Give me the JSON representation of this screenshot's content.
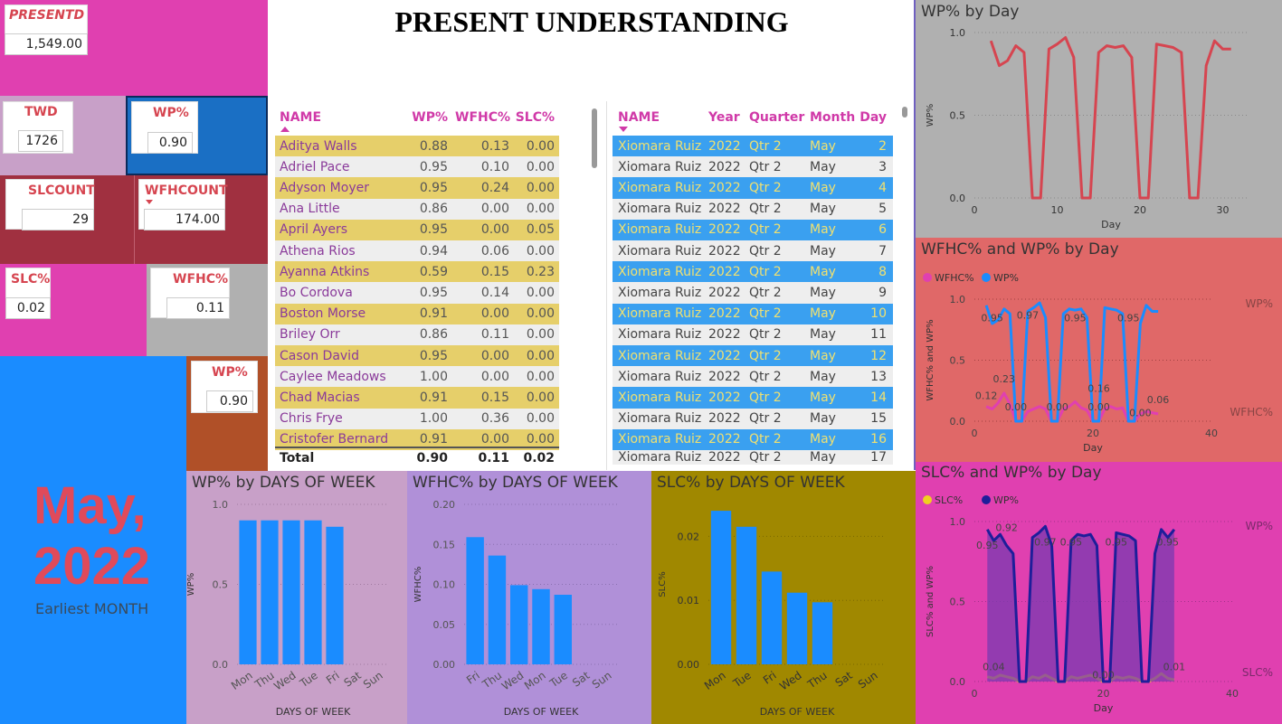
{
  "page_title": "PRESENT UNDERSTANDING",
  "cards": {
    "presentd": {
      "label": "PRESENTD",
      "value": "1,549.00"
    },
    "twd": {
      "label": "TWD",
      "value": "1726"
    },
    "wp_top": {
      "label": "WP%",
      "value": "0.90"
    },
    "slcount": {
      "label": "SLCOUNT",
      "value": "29"
    },
    "wfhcount": {
      "label": "WFHCOUNT",
      "value": "174.00"
    },
    "slc": {
      "label": "SLC%",
      "value": "0.02"
    },
    "wfhc": {
      "label": "WFHC%",
      "value": "0.11"
    },
    "wp_mid": {
      "label": "WP%",
      "value": "0.90"
    }
  },
  "month_card": {
    "line1": "May,",
    "line2": "2022",
    "caption": "Earliest MONTH"
  },
  "table1": {
    "headers": [
      "NAME",
      "WP%",
      "WFHC%",
      "SLC%"
    ],
    "rows": [
      [
        "Aditya Walls",
        "0.88",
        "0.13",
        "0.00"
      ],
      [
        "Adriel Pace",
        "0.95",
        "0.10",
        "0.00"
      ],
      [
        "Adyson Moyer",
        "0.95",
        "0.24",
        "0.00"
      ],
      [
        "Ana Little",
        "0.86",
        "0.00",
        "0.00"
      ],
      [
        "April Ayers",
        "0.95",
        "0.00",
        "0.05"
      ],
      [
        "Athena Rios",
        "0.94",
        "0.06",
        "0.00"
      ],
      [
        "Ayanna Atkins",
        "0.59",
        "0.15",
        "0.23"
      ],
      [
        "Bo Cordova",
        "0.95",
        "0.14",
        "0.00"
      ],
      [
        "Boston Morse",
        "0.91",
        "0.00",
        "0.00"
      ],
      [
        "Briley Orr",
        "0.86",
        "0.11",
        "0.00"
      ],
      [
        "Cason David",
        "0.95",
        "0.00",
        "0.00"
      ],
      [
        "Caylee Meadows",
        "1.00",
        "0.00",
        "0.00"
      ],
      [
        "Chad Macias",
        "0.91",
        "0.15",
        "0.00"
      ],
      [
        "Chris Frye",
        "1.00",
        "0.36",
        "0.00"
      ],
      [
        "Cristofer Bernard",
        "0.91",
        "0.00",
        "0.00"
      ]
    ],
    "total": [
      "Total",
      "0.90",
      "0.11",
      "0.02"
    ]
  },
  "table2": {
    "headers": [
      "NAME",
      "Year",
      "Quarter",
      "Month",
      "Day"
    ],
    "rows": [
      [
        "Xiomara Ruiz",
        "2022",
        "Qtr 2",
        "May",
        "2"
      ],
      [
        "Xiomara Ruiz",
        "2022",
        "Qtr 2",
        "May",
        "3"
      ],
      [
        "Xiomara Ruiz",
        "2022",
        "Qtr 2",
        "May",
        "4"
      ],
      [
        "Xiomara Ruiz",
        "2022",
        "Qtr 2",
        "May",
        "5"
      ],
      [
        "Xiomara Ruiz",
        "2022",
        "Qtr 2",
        "May",
        "6"
      ],
      [
        "Xiomara Ruiz",
        "2022",
        "Qtr 2",
        "May",
        "7"
      ],
      [
        "Xiomara Ruiz",
        "2022",
        "Qtr 2",
        "May",
        "8"
      ],
      [
        "Xiomara Ruiz",
        "2022",
        "Qtr 2",
        "May",
        "9"
      ],
      [
        "Xiomara Ruiz",
        "2022",
        "Qtr 2",
        "May",
        "10"
      ],
      [
        "Xiomara Ruiz",
        "2022",
        "Qtr 2",
        "May",
        "11"
      ],
      [
        "Xiomara Ruiz",
        "2022",
        "Qtr 2",
        "May",
        "12"
      ],
      [
        "Xiomara Ruiz",
        "2022",
        "Qtr 2",
        "May",
        "13"
      ],
      [
        "Xiomara Ruiz",
        "2022",
        "Qtr 2",
        "May",
        "14"
      ],
      [
        "Xiomara Ruiz",
        "2022",
        "Qtr 2",
        "May",
        "15"
      ],
      [
        "Xiomara Ruiz",
        "2022",
        "Qtr 2",
        "May",
        "16"
      ],
      [
        "Xiomara Ruiz",
        "2022",
        "Qtr 2",
        "May",
        "17"
      ]
    ]
  },
  "colors": {
    "pink": "#e040b0",
    "lilac": "#c8a0c8",
    "blue": "#1a6fc4",
    "maroon": "#a03040",
    "gray": "#b0b0b0",
    "brightblue": "#1a8cff",
    "rust": "#b05028",
    "bar": "#1a8cff",
    "red_line": "#d64550",
    "salmon": "#e06868",
    "olive": "#a08800",
    "purple": "#b090d8"
  },
  "chart_data": [
    {
      "type": "line",
      "title": "WP% by Day",
      "xlabel": "Day",
      "ylabel": "WP%",
      "xlim": [
        0,
        33
      ],
      "ylim": [
        0,
        1
      ],
      "xticks": [
        "0",
        "10",
        "20",
        "30"
      ],
      "yticks": [
        "0.0",
        "0.5",
        "1.0"
      ],
      "x": [
        2,
        3,
        4,
        5,
        6,
        7,
        8,
        9,
        10,
        11,
        12,
        13,
        14,
        15,
        16,
        17,
        18,
        19,
        20,
        21,
        22,
        23,
        24,
        25,
        26,
        27,
        28,
        29,
        30,
        31
      ],
      "series": [
        {
          "name": "WP%",
          "values": [
            0.95,
            0.8,
            0.83,
            0.92,
            0.88,
            0,
            0,
            0.9,
            0.93,
            0.97,
            0.85,
            0,
            0,
            0.88,
            0.92,
            0.91,
            0.92,
            0.85,
            0,
            0,
            0.93,
            0.92,
            0.91,
            0.88,
            0,
            0,
            0.8,
            0.95,
            0.9,
            0.9
          ]
        }
      ]
    },
    {
      "type": "line",
      "title": "WFHC% and WP% by Day",
      "xlabel": "Day",
      "ylabel": "WFHC% and WP%",
      "xlim": [
        0,
        40
      ],
      "ylim": [
        0,
        1
      ],
      "xticks": [
        "0",
        "20",
        "40"
      ],
      "yticks": [
        "0.0",
        "0.5",
        "1.0"
      ],
      "legend": [
        "WFHC%",
        "WP%"
      ],
      "right_labels": [
        "WP%",
        "WFHC%"
      ],
      "data_labels": [
        "0.95",
        "0.97",
        "0.95",
        "0.95",
        "0.12",
        "0.23",
        "0.00",
        "0.00",
        "0.16",
        "0.00",
        "0.00",
        "0.06"
      ],
      "x": [
        2,
        3,
        4,
        5,
        6,
        7,
        8,
        9,
        10,
        11,
        12,
        13,
        14,
        15,
        16,
        17,
        18,
        19,
        20,
        21,
        22,
        23,
        24,
        25,
        26,
        27,
        28,
        29,
        30,
        31
      ],
      "series": [
        {
          "name": "WFHC%",
          "values": [
            0.12,
            0.1,
            0.15,
            0.23,
            0.14,
            0,
            0,
            0.08,
            0.1,
            0.12,
            0.1,
            0,
            0,
            0.1,
            0.12,
            0.16,
            0.11,
            0.09,
            0,
            0,
            0.1,
            0.12,
            0.1,
            0.11,
            0,
            0,
            0.06,
            0.08,
            0.07,
            0.06
          ]
        },
        {
          "name": "WP%",
          "values": [
            0.95,
            0.8,
            0.83,
            0.92,
            0.88,
            0,
            0,
            0.9,
            0.93,
            0.97,
            0.85,
            0,
            0,
            0.88,
            0.92,
            0.91,
            0.92,
            0.85,
            0,
            0,
            0.93,
            0.92,
            0.91,
            0.88,
            0,
            0,
            0.8,
            0.95,
            0.9,
            0.9
          ]
        }
      ]
    },
    {
      "type": "area",
      "title": "SLC% and WP% by Day",
      "xlabel": "Day",
      "ylabel": "SLC% and WP%",
      "xlim": [
        0,
        40
      ],
      "ylim": [
        0,
        1
      ],
      "xticks": [
        "0",
        "20",
        "40"
      ],
      "yticks": [
        "0.0",
        "0.5",
        "1.0"
      ],
      "legend": [
        "SLC%",
        "WP%"
      ],
      "right_labels": [
        "WP%",
        "SLC%"
      ],
      "data_labels": [
        "0.95",
        "0.92",
        "0.97",
        "0.95",
        "0.95",
        "0.95",
        "0.04",
        "0.00",
        "0.01"
      ],
      "x": [
        2,
        3,
        4,
        5,
        6,
        7,
        8,
        9,
        10,
        11,
        12,
        13,
        14,
        15,
        16,
        17,
        18,
        19,
        20,
        21,
        22,
        23,
        24,
        25,
        26,
        27,
        28,
        29,
        30,
        31
      ],
      "series": [
        {
          "name": "SLC%",
          "values": [
            0.03,
            0.02,
            0.04,
            0.03,
            0.02,
            0,
            0,
            0.03,
            0.02,
            0.04,
            0.02,
            0,
            0,
            0.03,
            0.02,
            0.03,
            0.04,
            0.02,
            0,
            0,
            0.03,
            0.02,
            0.03,
            0.02,
            0,
            0,
            0.02,
            0.05,
            0.02,
            0.01
          ]
        },
        {
          "name": "WP%",
          "values": [
            0.95,
            0.88,
            0.92,
            0.85,
            0.8,
            0,
            0,
            0.9,
            0.93,
            0.97,
            0.85,
            0,
            0,
            0.88,
            0.92,
            0.91,
            0.92,
            0.85,
            0,
            0,
            0.93,
            0.92,
            0.91,
            0.88,
            0,
            0,
            0.8,
            0.95,
            0.9,
            0.95
          ]
        }
      ]
    },
    {
      "type": "bar",
      "title": "WP% by DAYS OF WEEK",
      "xlabel": "DAYS OF WEEK",
      "ylabel": "WP%",
      "ylim": [
        0,
        1
      ],
      "yticks": [
        "0.0",
        "0.5",
        "1.0"
      ],
      "categories": [
        "Mon",
        "Thu",
        "Wed",
        "Tue",
        "Fri",
        "Sat",
        "Sun"
      ],
      "values": [
        0.9,
        0.9,
        0.9,
        0.9,
        0.86,
        0,
        0
      ]
    },
    {
      "type": "bar",
      "title": "WFHC% by DAYS OF WEEK",
      "xlabel": "DAYS OF WEEK",
      "ylabel": "WFHC%",
      "ylim": [
        0,
        0.2
      ],
      "yticks": [
        "0.00",
        "0.05",
        "0.10",
        "0.15",
        "0.20"
      ],
      "categories": [
        "Fri",
        "Thu",
        "Wed",
        "Mon",
        "Tue",
        "Sat",
        "Sun"
      ],
      "values": [
        0.159,
        0.136,
        0.099,
        0.094,
        0.087,
        0,
        0
      ]
    },
    {
      "type": "bar",
      "title": "SLC% by DAYS OF WEEK",
      "xlabel": "DAYS OF WEEK",
      "ylabel": "SLC%",
      "ylim": [
        0,
        0.025
      ],
      "yticks": [
        "0.00",
        "0.01",
        "0.02"
      ],
      "categories": [
        "Mon",
        "Tue",
        "Fri",
        "Wed",
        "Thu",
        "Sat",
        "Sun"
      ],
      "values": [
        0.024,
        0.0215,
        0.0145,
        0.0112,
        0.0097,
        0,
        0
      ]
    }
  ]
}
